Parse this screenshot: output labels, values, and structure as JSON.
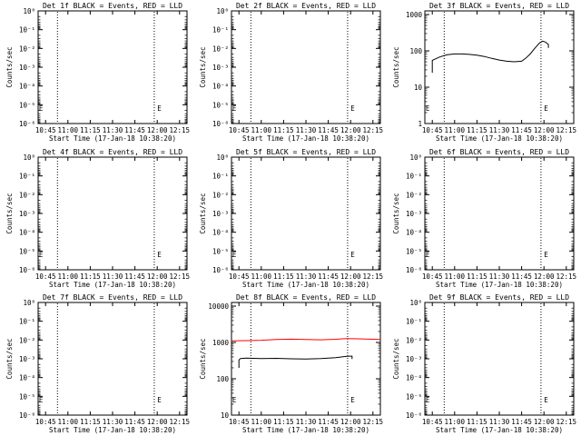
{
  "chart_data": [
    {
      "type": "line",
      "title": "Det 1f BLACK = Events, RED = LLD",
      "xlabel": "Start Time (17-Jan-18 10:38:20)",
      "ylabel": "Counts/sec",
      "y_scale": "log",
      "x_tick_labels": [
        "10:45",
        "11:00",
        "11:15",
        "11:30",
        "11:45",
        "12:00",
        "12:15"
      ],
      "x_ticks_min": [
        45,
        60,
        75,
        90,
        105,
        120,
        135
      ],
      "xlim_min": [
        40,
        140
      ],
      "y_tick_labels": [
        "10⁰",
        "10⁻¹",
        "10⁻²",
        "10⁻³",
        "10⁻⁴",
        "10⁻⁵",
        "10⁻⁶"
      ],
      "y_tick_exps": [
        0,
        -1,
        -2,
        -3,
        -4,
        -5,
        -6
      ],
      "ylim_exp": [
        -6,
        0
      ],
      "vlines_min": [
        53,
        118
      ],
      "series": [],
      "markers": [
        "E",
        "E"
      ]
    },
    {
      "type": "line",
      "title": "Det 2f BLACK = Events, RED = LLD",
      "xlabel": "Start Time (17-Jan-18 10:38:20)",
      "ylabel": "Counts/sec",
      "y_scale": "log",
      "x_tick_labels": [
        "10:45",
        "11:00",
        "11:15",
        "11:30",
        "11:45",
        "12:00",
        "12:15"
      ],
      "x_ticks_min": [
        45,
        60,
        75,
        90,
        105,
        120,
        135
      ],
      "xlim_min": [
        40,
        140
      ],
      "y_tick_labels": [
        "10⁰",
        "10⁻¹",
        "10⁻²",
        "10⁻³",
        "10⁻⁴",
        "10⁻⁵",
        "10⁻⁶"
      ],
      "y_tick_exps": [
        0,
        -1,
        -2,
        -3,
        -4,
        -5,
        -6
      ],
      "ylim_exp": [
        -6,
        0
      ],
      "vlines_min": [
        53,
        118
      ],
      "series": [],
      "markers": [
        "E",
        "E"
      ]
    },
    {
      "type": "line",
      "title": "Det 3f BLACK = Events, RED = LLD",
      "xlabel": "Start Time (17-Jan-18 10:38:20)",
      "ylabel": "Counts/sec",
      "y_scale": "log",
      "x_tick_labels": [
        "10:45",
        "11:00",
        "11:15",
        "11:30",
        "11:45",
        "12:00",
        "12:15"
      ],
      "x_ticks_min": [
        45,
        60,
        75,
        90,
        105,
        120,
        135
      ],
      "xlim_min": [
        40,
        140
      ],
      "y_tick_labels": [
        "1",
        "10",
        "100",
        "1000"
      ],
      "y_tick_exps": [
        0,
        1,
        2,
        3
      ],
      "ylim_exp": [
        0,
        3.1
      ],
      "vlines_min": [
        53,
        118
      ],
      "series": [
        {
          "color": "#000000",
          "x_min": [
            45,
            45,
            47,
            50,
            55,
            60,
            65,
            70,
            75,
            80,
            85,
            90,
            95,
            100,
            105,
            108,
            111,
            114,
            117,
            119,
            121,
            123,
            123
          ],
          "values": [
            25,
            55,
            60,
            68,
            78,
            82,
            82,
            80,
            76,
            70,
            62,
            56,
            52,
            50,
            52,
            64,
            84,
            120,
            165,
            185,
            175,
            150,
            120
          ]
        }
      ],
      "markers": [
        "E",
        "E"
      ]
    },
    {
      "type": "line",
      "title": "Det 4f BLACK = Events, RED = LLD",
      "xlabel": "Start Time (17-Jan-18 10:38:20)",
      "ylabel": "Counts/sec",
      "y_scale": "log",
      "x_tick_labels": [
        "10:45",
        "11:00",
        "11:15",
        "11:30",
        "11:45",
        "12:00",
        "12:15"
      ],
      "x_ticks_min": [
        45,
        60,
        75,
        90,
        105,
        120,
        135
      ],
      "xlim_min": [
        40,
        140
      ],
      "y_tick_labels": [
        "10⁰",
        "10⁻¹",
        "10⁻²",
        "10⁻³",
        "10⁻⁴",
        "10⁻⁵",
        "10⁻⁶"
      ],
      "y_tick_exps": [
        0,
        -1,
        -2,
        -3,
        -4,
        -5,
        -6
      ],
      "ylim_exp": [
        -6,
        0
      ],
      "vlines_min": [
        53,
        118
      ],
      "series": [],
      "markers": [
        "E",
        "E"
      ]
    },
    {
      "type": "line",
      "title": "Det 5f BLACK = Events, RED = LLD",
      "xlabel": "Start Time (17-Jan-18 10:38:20)",
      "ylabel": "Counts/sec",
      "y_scale": "log",
      "x_tick_labels": [
        "10:45",
        "11:00",
        "11:15",
        "11:30",
        "11:45",
        "12:00",
        "12:15"
      ],
      "x_ticks_min": [
        45,
        60,
        75,
        90,
        105,
        120,
        135
      ],
      "xlim_min": [
        40,
        140
      ],
      "y_tick_labels": [
        "10⁰",
        "10⁻¹",
        "10⁻²",
        "10⁻³",
        "10⁻⁴",
        "10⁻⁵",
        "10⁻⁶"
      ],
      "y_tick_exps": [
        0,
        -1,
        -2,
        -3,
        -4,
        -5,
        -6
      ],
      "ylim_exp": [
        -6,
        0
      ],
      "vlines_min": [
        53,
        118
      ],
      "series": [],
      "markers": [
        "E",
        "E"
      ]
    },
    {
      "type": "line",
      "title": "Det 6f BLACK = Events, RED = LLD",
      "xlabel": "Start Time (17-Jan-18 10:38:20)",
      "ylabel": "Counts/sec",
      "y_scale": "log",
      "x_tick_labels": [
        "10:45",
        "11:00",
        "11:15",
        "11:30",
        "11:45",
        "12:00",
        "12:15"
      ],
      "x_ticks_min": [
        45,
        60,
        75,
        90,
        105,
        120,
        135
      ],
      "xlim_min": [
        40,
        140
      ],
      "y_tick_labels": [
        "10⁰",
        "10⁻¹",
        "10⁻²",
        "10⁻³",
        "10⁻⁴",
        "10⁻⁵",
        "10⁻⁶"
      ],
      "y_tick_exps": [
        0,
        -1,
        -2,
        -3,
        -4,
        -5,
        -6
      ],
      "ylim_exp": [
        -6,
        0
      ],
      "vlines_min": [
        53,
        118
      ],
      "series": [],
      "markers": [
        "E",
        "E"
      ]
    },
    {
      "type": "line",
      "title": "Det 7f BLACK = Events, RED = LLD",
      "xlabel": "Start Time (17-Jan-18 10:38:20)",
      "ylabel": "Counts/sec",
      "y_scale": "log",
      "x_tick_labels": [
        "10:45",
        "11:00",
        "11:15",
        "11:30",
        "11:45",
        "12:00",
        "12:15"
      ],
      "x_ticks_min": [
        45,
        60,
        75,
        90,
        105,
        120,
        135
      ],
      "xlim_min": [
        40,
        140
      ],
      "y_tick_labels": [
        "10⁰",
        "10⁻¹",
        "10⁻²",
        "10⁻³",
        "10⁻⁴",
        "10⁻⁵",
        "10⁻⁶"
      ],
      "y_tick_exps": [
        0,
        -1,
        -2,
        -3,
        -4,
        -5,
        -6
      ],
      "ylim_exp": [
        -6,
        0
      ],
      "vlines_min": [
        53,
        118
      ],
      "series": [],
      "markers": [
        "E",
        "E"
      ]
    },
    {
      "type": "line",
      "title": "Det 8f BLACK = Events, RED = LLD",
      "xlabel": "Start Time (17-Jan-18 10:38:20)",
      "ylabel": "Counts/sec",
      "y_scale": "log",
      "x_tick_labels": [
        "10:45",
        "11:00",
        "11:15",
        "11:30",
        "11:45",
        "12:00",
        "12:15"
      ],
      "x_ticks_min": [
        45,
        60,
        75,
        90,
        105,
        120,
        135
      ],
      "xlim_min": [
        40,
        140
      ],
      "y_tick_labels": [
        "10",
        "100",
        "1000",
        "10000"
      ],
      "y_tick_exps": [
        1,
        2,
        3,
        4
      ],
      "ylim_exp": [
        1,
        4.1
      ],
      "vlines_min": [
        53,
        118
      ],
      "series": [
        {
          "color": "#ff0000",
          "x_min": [
            40,
            50,
            60,
            70,
            80,
            90,
            100,
            110,
            117,
            125,
            140
          ],
          "values": [
            1100,
            1120,
            1150,
            1200,
            1230,
            1210,
            1180,
            1220,
            1280,
            1260,
            1200
          ]
        },
        {
          "color": "#000000",
          "x_min": [
            45,
            45,
            46,
            50,
            60,
            70,
            80,
            90,
            100,
            110,
            118,
            121,
            121
          ],
          "values": [
            200,
            330,
            360,
            370,
            360,
            365,
            355,
            350,
            360,
            380,
            420,
            420,
            350
          ]
        }
      ],
      "markers": [
        "E",
        "E"
      ]
    },
    {
      "type": "line",
      "title": "Det 9f BLACK = Events, RED = LLD",
      "xlabel": "Start Time (17-Jan-18 10:38:20)",
      "ylabel": "Counts/sec",
      "y_scale": "log",
      "x_tick_labels": [
        "10:45",
        "11:00",
        "11:15",
        "11:30",
        "11:45",
        "12:00",
        "12:15"
      ],
      "x_ticks_min": [
        45,
        60,
        75,
        90,
        105,
        120,
        135
      ],
      "xlim_min": [
        40,
        140
      ],
      "y_tick_labels": [
        "10⁰",
        "10⁻¹",
        "10⁻²",
        "10⁻³",
        "10⁻⁴",
        "10⁻⁵",
        "10⁻⁶"
      ],
      "y_tick_exps": [
        0,
        -1,
        -2,
        -3,
        -4,
        -5,
        -6
      ],
      "ylim_exp": [
        -6,
        0
      ],
      "vlines_min": [
        53,
        118
      ],
      "series": [],
      "markers": [
        "E",
        "E"
      ]
    }
  ]
}
